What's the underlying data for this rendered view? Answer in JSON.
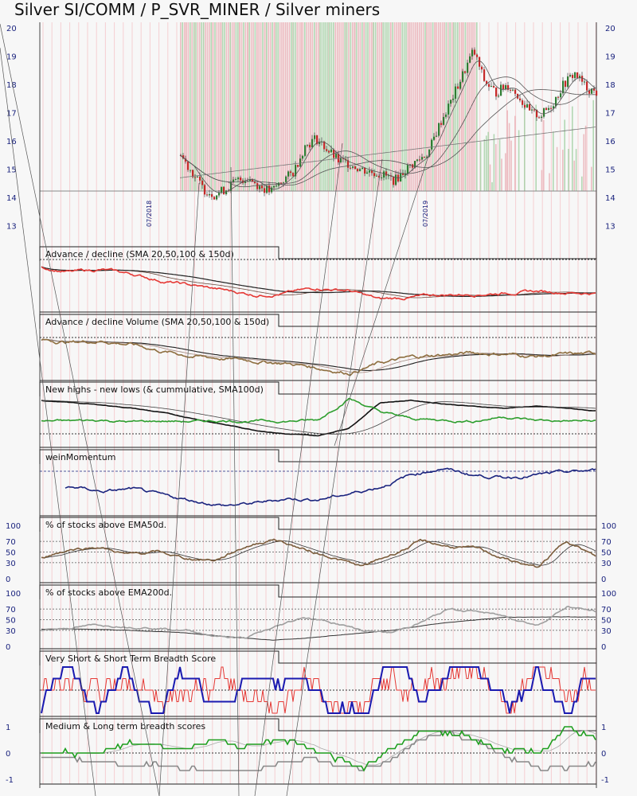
{
  "title": "Silver SI/COMM / P_SVR_MINER / Silver miners",
  "chart_data": {
    "type": "line",
    "x_dates": [
      "07/2018",
      "07/2019"
    ],
    "price_axis": {
      "ticks": [
        20,
        19,
        18,
        17,
        16,
        15,
        14,
        13
      ],
      "ylim": [
        12.4,
        20.2
      ]
    },
    "price_close": [
      15.5,
      14.9,
      14.3,
      14.1,
      14.3,
      14.6,
      14.7,
      14.4,
      14.2,
      14.6,
      14.9,
      15.8,
      16.1,
      15.7,
      15.3,
      15.2,
      15.0,
      14.9,
      14.8,
      14.6,
      15.0,
      15.3,
      15.6,
      16.6,
      17.4,
      18.3,
      19.2,
      18.1,
      17.7,
      18.0,
      17.6,
      17.0,
      16.9,
      17.3,
      18.0,
      18.4,
      17.9,
      17.7
    ],
    "panels": [
      {
        "title": "Advance / decline (SMA 20,50,100 & 150d)"
      },
      {
        "title": "Advance / decline Volume (SMA 20,50,100 & 150d)"
      },
      {
        "title": "New highs - new lows (& cummulative, SMA100d)"
      },
      {
        "title": "weinMomentum"
      },
      {
        "title": "% of stocks above EMA50d.",
        "ticks": [
          100,
          70,
          50,
          30,
          0
        ]
      },
      {
        "title": "% of stocks above EMA200d.",
        "ticks": [
          100,
          70,
          50,
          30,
          0
        ]
      },
      {
        "title": "Very Short & Short Term Breadth Score"
      },
      {
        "title": "Medium & Long term breadth scores",
        "ticks": [
          1,
          0,
          -1
        ]
      }
    ],
    "series": {
      "ad": [
        0.9,
        0.8,
        0.85,
        0.75,
        0.6,
        0.5,
        0.4,
        0.3,
        0.35,
        0.45,
        0.4,
        0.2,
        0.25,
        0.3,
        0.32,
        0.35,
        0.38,
        0.36,
        0.34
      ],
      "adv": [
        0.8,
        0.75,
        0.78,
        0.7,
        0.55,
        0.45,
        0.4,
        0.35,
        0.3,
        0.2,
        0.1,
        0.3,
        0.42,
        0.48,
        0.52,
        0.5,
        0.45,
        0.48,
        0.5
      ],
      "nhnl": [
        0.5,
        0.5,
        0.52,
        0.48,
        0.5,
        0.49,
        0.51,
        0.5,
        0.5,
        0.52,
        1.0,
        0.7,
        0.55,
        0.52,
        0.5,
        0.6,
        0.52,
        0.5,
        0.5
      ],
      "nhnl_cum": [
        0.95,
        0.9,
        0.85,
        0.78,
        0.68,
        0.55,
        0.42,
        0.3,
        0.22,
        0.18,
        0.35,
        0.9,
        0.95,
        0.88,
        0.82,
        0.78,
        0.82,
        0.78,
        0.72
      ],
      "wein": [
        0.4,
        0.55,
        0.45,
        0.5,
        0.35,
        0.25,
        0.15,
        0.2,
        0.3,
        0.28,
        0.4,
        0.55,
        0.8,
        0.95,
        0.8,
        0.75,
        0.8,
        0.85,
        0.9
      ],
      "ema50": [
        40,
        55,
        60,
        45,
        50,
        38,
        35,
        60,
        75,
        55,
        40,
        22,
        45,
        70,
        60,
        55,
        35,
        20,
        72,
        40
      ],
      "ema200": [
        30,
        35,
        40,
        38,
        35,
        30,
        20,
        15,
        35,
        55,
        45,
        30,
        25,
        45,
        70,
        65,
        55,
        40,
        75,
        65
      ],
      "ema200_ma": [
        32,
        33,
        32,
        30,
        28,
        25,
        20,
        15,
        12,
        15,
        20,
        25,
        30,
        38,
        45,
        50,
        55,
        55,
        55,
        55
      ],
      "score_short": [
        0.2,
        0.8,
        0.4,
        0.9,
        0.3,
        0.7,
        0.5,
        0.6,
        0.2,
        0.9,
        0.4,
        0.1,
        0.8,
        0.6,
        0.9,
        0.95,
        0.5,
        0.8,
        0.3,
        0.7
      ],
      "score_vshort": [
        0.1,
        0.9,
        0.2,
        0.95,
        0.05,
        0.9,
        0.1,
        0.8,
        0.3,
        0.95,
        0.2,
        0.05,
        0.9,
        0.4,
        0.95,
        0.9,
        0.2,
        0.9,
        0.1,
        0.8
      ],
      "medium": [
        0.1,
        0.0,
        -0.2,
        0.3,
        0.4,
        0.2,
        0.5,
        0.3,
        0.6,
        0.4,
        -0.1,
        -0.6,
        0.1,
        0.7,
        0.8,
        0.6,
        0.2,
        0.1,
        0.9,
        0.5
      ],
      "long": [
        -0.1,
        -0.2,
        -0.3,
        -0.4,
        -0.5,
        -0.6,
        -0.7,
        -0.6,
        -0.4,
        -0.2,
        -0.4,
        -0.6,
        -0.3,
        0.5,
        0.8,
        0.4,
        -0.2,
        -0.6,
        -0.5,
        -0.4
      ]
    }
  },
  "colors": {
    "price_up": "#2e7d32",
    "price_down": "#c62828",
    "ad": "#e53935",
    "adv": "#8d6e3f",
    "nhnl": "#2e9e2e",
    "wein": "#1a237e",
    "ema50": "#7a5c3b",
    "ema200": "#9e9e9e",
    "score_short": "#e53935",
    "score_vshort": "#1a1ab0",
    "medium": "#1e9e1e",
    "long": "#888888",
    "tick": "#1a237e"
  }
}
